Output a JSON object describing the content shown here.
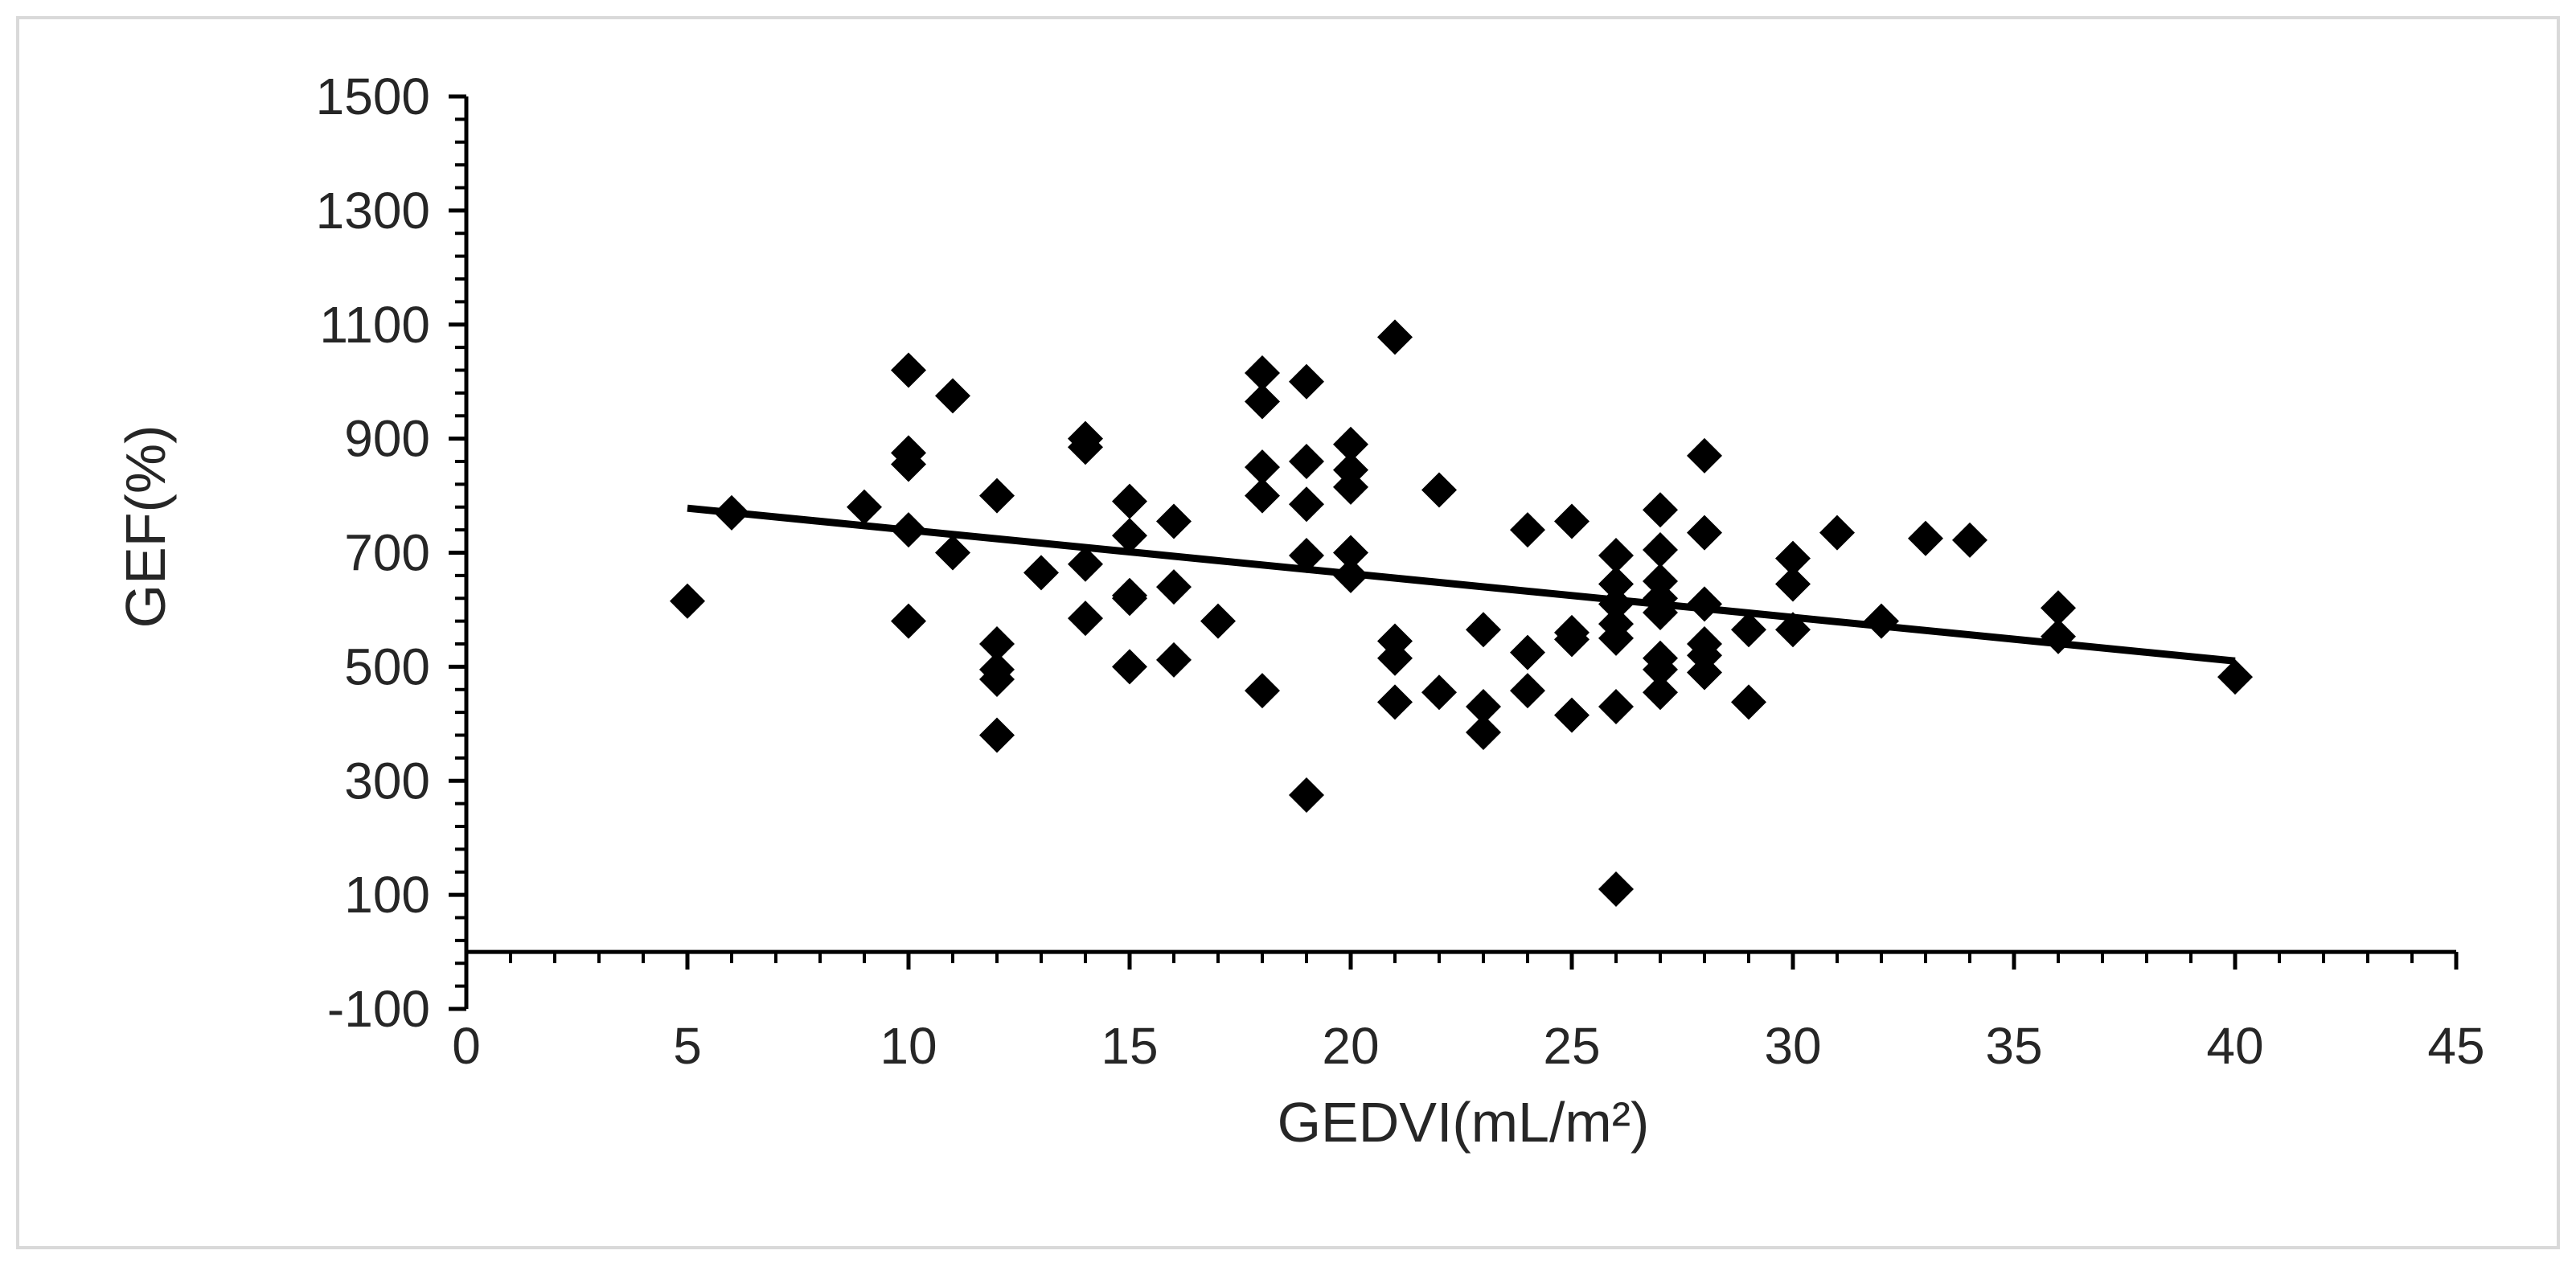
{
  "chart_data": {
    "type": "scatter",
    "title": "",
    "xlabel": "GEDVI(mL/m²)",
    "ylabel": "GEF(%)",
    "xlim": [
      0,
      45
    ],
    "ylim": [
      -100,
      1500
    ],
    "x_major_step": 5,
    "x_minor_step": 1,
    "y_major_step": 200,
    "y_minor_step": 40,
    "x_tick_labels": [
      "0",
      "5",
      "10",
      "15",
      "20",
      "25",
      "30",
      "35",
      "40",
      "45"
    ],
    "y_tick_labels": [
      "-100",
      "100",
      "300",
      "500",
      "700",
      "900",
      "1100",
      "1300",
      "1500"
    ],
    "grid": false,
    "legend": "none",
    "colors": {
      "marker": "#000000",
      "axis": "#000000",
      "trendline": "#000000",
      "frame": "#d9d9d9"
    },
    "series": [
      {
        "marker": "diamond",
        "points": [
          [
            5,
            615
          ],
          [
            6,
            770
          ],
          [
            9,
            780
          ],
          [
            10,
            1020
          ],
          [
            10,
            875
          ],
          [
            10,
            855
          ],
          [
            10,
            740
          ],
          [
            10,
            580
          ],
          [
            11,
            975
          ],
          [
            11,
            700
          ],
          [
            12,
            800
          ],
          [
            12,
            540
          ],
          [
            12,
            495
          ],
          [
            12,
            478
          ],
          [
            12,
            380
          ],
          [
            13,
            665
          ],
          [
            14,
            900
          ],
          [
            14,
            885
          ],
          [
            14,
            680
          ],
          [
            14,
            585
          ],
          [
            15,
            790
          ],
          [
            15,
            730
          ],
          [
            15,
            625
          ],
          [
            15,
            620
          ],
          [
            15,
            500
          ],
          [
            16,
            755
          ],
          [
            16,
            640
          ],
          [
            16,
            512
          ],
          [
            17,
            580
          ],
          [
            18,
            1015
          ],
          [
            18,
            965
          ],
          [
            18,
            850
          ],
          [
            18,
            800
          ],
          [
            18,
            458
          ],
          [
            19,
            1000
          ],
          [
            19,
            860
          ],
          [
            19,
            785
          ],
          [
            19,
            695
          ],
          [
            19,
            275
          ],
          [
            20,
            890
          ],
          [
            20,
            845
          ],
          [
            20,
            815
          ],
          [
            20,
            700
          ],
          [
            20,
            660
          ],
          [
            21,
            1078
          ],
          [
            21,
            545
          ],
          [
            21,
            515
          ],
          [
            21,
            438
          ],
          [
            22,
            810
          ],
          [
            22,
            455
          ],
          [
            23,
            565
          ],
          [
            23,
            430
          ],
          [
            23,
            385
          ],
          [
            24,
            740
          ],
          [
            24,
            525
          ],
          [
            24,
            458
          ],
          [
            25,
            755
          ],
          [
            25,
            560
          ],
          [
            25,
            548
          ],
          [
            25,
            415
          ],
          [
            26,
            695
          ],
          [
            26,
            645
          ],
          [
            26,
            610
          ],
          [
            26,
            575
          ],
          [
            26,
            550
          ],
          [
            26,
            430
          ],
          [
            26,
            110
          ],
          [
            27,
            775
          ],
          [
            27,
            705
          ],
          [
            27,
            650
          ],
          [
            27,
            620
          ],
          [
            27,
            595
          ],
          [
            27,
            515
          ],
          [
            27,
            495
          ],
          [
            27,
            455
          ],
          [
            28,
            870
          ],
          [
            28,
            735
          ],
          [
            28,
            610
          ],
          [
            28,
            540
          ],
          [
            28,
            520
          ],
          [
            28,
            490
          ],
          [
            29,
            565
          ],
          [
            29,
            438
          ],
          [
            30,
            690
          ],
          [
            30,
            645
          ],
          [
            30,
            565
          ],
          [
            31,
            735
          ],
          [
            32,
            580
          ],
          [
            33,
            725
          ],
          [
            34,
            722
          ],
          [
            36,
            603
          ],
          [
            36,
            553
          ],
          [
            40,
            482
          ]
        ]
      }
    ],
    "trendline": {
      "x": [
        5,
        40
      ],
      "y": [
        778,
        510
      ]
    }
  }
}
